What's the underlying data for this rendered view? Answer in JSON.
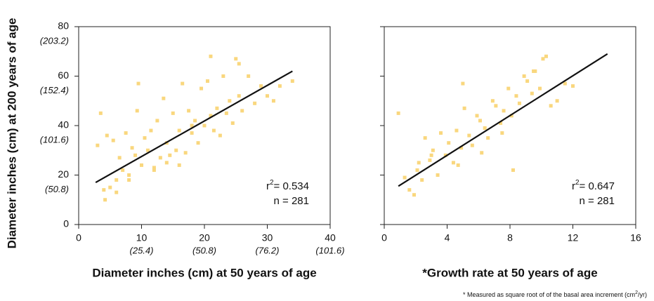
{
  "chart_data": [
    {
      "type": "scatter",
      "ylabel": "Diameter inches (cm) at 200 years of age",
      "xlabel": "Diameter inches (cm) at 50 years of age",
      "color": "#f9d77e",
      "line_color": "#111111",
      "xlim": [
        0,
        40
      ],
      "ylim": [
        0,
        80
      ],
      "xticks": [
        0,
        10,
        20,
        30,
        40
      ],
      "xticks2": [
        {
          "value": 10,
          "label": "(25.4)"
        },
        {
          "value": 20,
          "label": "(50.8)"
        },
        {
          "value": 30,
          "label": "(76.2)"
        },
        {
          "value": 40,
          "label": "(101.6)"
        }
      ],
      "yticks": [
        0,
        20,
        40,
        60,
        80
      ],
      "yticks2": [
        {
          "value": 20,
          "label": "(50.8)"
        },
        {
          "value": 40,
          "label": "(101.6)"
        },
        {
          "value": 60,
          "label": "(152.4)"
        },
        {
          "value": 80,
          "label": "(203.2)"
        }
      ],
      "x": [
        3,
        3.5,
        4,
        4.5,
        5,
        5.5,
        6,
        6.5,
        7,
        7.5,
        8,
        8.5,
        9,
        9.5,
        10,
        10.5,
        11,
        11.5,
        12,
        12.5,
        13,
        13.5,
        14,
        14.5,
        15,
        15.5,
        16,
        16.5,
        17,
        17.5,
        18,
        18.5,
        19,
        19.5,
        20,
        20.5,
        21,
        21.5,
        22,
        22.5,
        23,
        23.5,
        24,
        24.5,
        25,
        25.5,
        26,
        27,
        28,
        29,
        30,
        31,
        32,
        34,
        9.3,
        21,
        16,
        12,
        8,
        6,
        25.5,
        4.2,
        18,
        14
      ],
      "y": [
        32,
        45,
        14,
        36,
        15,
        34,
        18,
        27,
        22,
        37,
        20,
        31,
        28,
        57,
        24,
        35,
        30,
        38,
        23,
        42,
        27,
        51,
        33,
        28,
        45,
        30,
        38,
        57,
        29,
        46,
        37,
        42,
        33,
        55,
        40,
        58,
        44,
        38,
        47,
        36,
        60,
        45,
        50,
        41,
        67,
        52,
        46,
        60,
        49,
        56,
        52,
        50,
        56,
        58,
        46,
        68,
        24,
        22,
        18,
        13,
        65,
        10,
        40,
        25
      ],
      "fit": {
        "x": [
          2.7,
          34
        ],
        "y": [
          17,
          62
        ]
      },
      "annotation": {
        "r": "r",
        "sup": "2",
        "r2": "= 0.534",
        "n": "n = 281"
      }
    },
    {
      "type": "scatter",
      "xlabel": "*Growth rate at 50 years of age",
      "color": "#f9d77e",
      "line_color": "#111111",
      "xlim": [
        0,
        16
      ],
      "ylim": [
        0,
        80
      ],
      "xticks": [
        0,
        4,
        8,
        12,
        16
      ],
      "yticks": [
        0,
        20,
        40,
        60,
        80
      ],
      "x": [
        0.9,
        1.3,
        1.6,
        1.9,
        2.1,
        2.4,
        2.6,
        2.9,
        3.1,
        3.4,
        3.6,
        3.9,
        4.1,
        4.4,
        4.6,
        4.9,
        5.1,
        5.4,
        5.6,
        5.9,
        6.1,
        6.4,
        6.6,
        6.9,
        7.1,
        7.4,
        7.6,
        7.9,
        8.1,
        8.4,
        8.6,
        8.9,
        9.1,
        9.4,
        9.6,
        9.9,
        10.1,
        10.3,
        10.6,
        11,
        11.5,
        12,
        5,
        3,
        7.5,
        8.2,
        2.2,
        4.7,
        6.2,
        9.5
      ],
      "y": [
        45,
        19,
        14,
        12,
        22,
        18,
        35,
        26,
        30,
        20,
        37,
        28,
        33,
        25,
        38,
        31,
        47,
        36,
        32,
        44,
        42,
        39,
        35,
        50,
        48,
        41,
        46,
        55,
        44,
        52,
        49,
        60,
        58,
        53,
        62,
        55,
        67,
        68,
        48,
        50,
        57,
        56,
        57,
        28,
        37,
        22,
        25,
        24,
        29,
        62
      ],
      "fit": {
        "x": [
          0.9,
          14.2
        ],
        "y": [
          15.5,
          69
        ]
      },
      "annotation": {
        "r": "r",
        "sup": "2",
        "r2": "= 0.647",
        "n": "n = 281"
      },
      "footnote": {
        "a": "* Measured as square root of of the basal area increment (cm",
        "sup": "2",
        "b": "/yr)"
      }
    }
  ]
}
